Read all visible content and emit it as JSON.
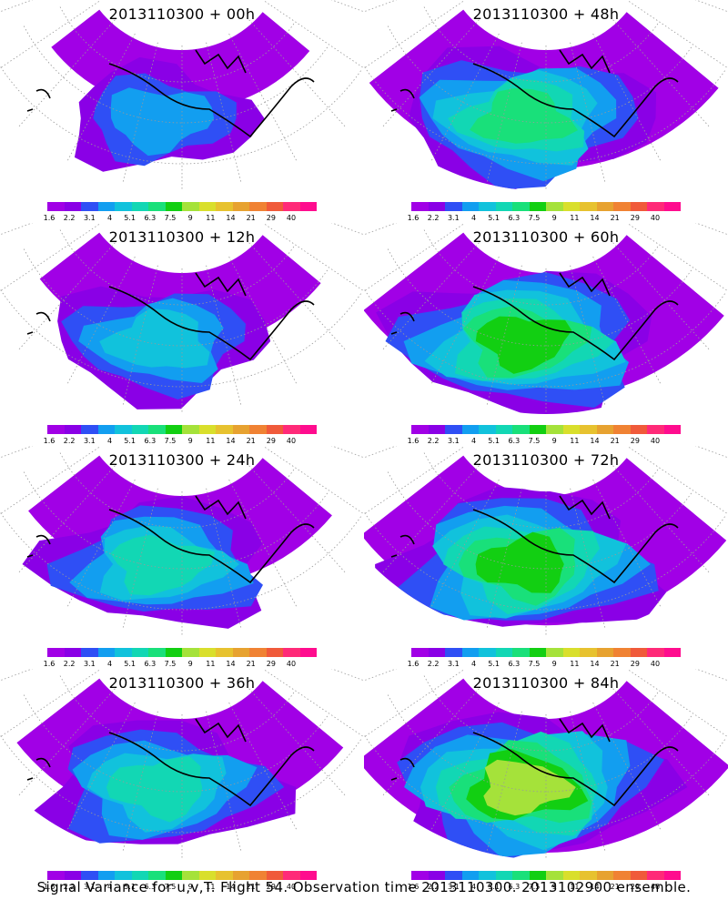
{
  "panels": [
    {
      "title": "2013110300 + 00h",
      "intensity": 0.1,
      "coverage": 0.35
    },
    {
      "title": "2013110300 + 48h",
      "intensity": 0.4,
      "coverage": 0.85
    },
    {
      "title": "2013110300 + 12h",
      "intensity": 0.2,
      "coverage": 0.55
    },
    {
      "title": "2013110300 + 60h",
      "intensity": 0.5,
      "coverage": 0.9
    },
    {
      "title": "2013110300 + 24h",
      "intensity": 0.3,
      "coverage": 0.65
    },
    {
      "title": "2013110300 + 72h",
      "intensity": 0.6,
      "coverage": 0.92
    },
    {
      "title": "2013110300 + 36h",
      "intensity": 0.35,
      "coverage": 0.75
    },
    {
      "title": "2013110300 + 84h",
      "intensity": 0.7,
      "coverage": 0.95
    }
  ],
  "colorbar": {
    "colors": [
      "#a100e6",
      "#8a00e6",
      "#2f4ff5",
      "#129ef0",
      "#11c2dc",
      "#12d7b4",
      "#19e07a",
      "#12cf12",
      "#a5e23a",
      "#d9df2c",
      "#e7c22f",
      "#e7a230",
      "#f08233",
      "#f05a3a",
      "#ff2a78",
      "#ff0c8e"
    ],
    "labels": [
      "1.6",
      "2.2",
      "3.1",
      "4",
      "5.1",
      "6.3",
      "7.5",
      "9",
      "11",
      "14",
      "21",
      "29",
      "40"
    ]
  },
  "caption": "Signal Variance for u,v,T. Flight 54. Observation time 2013110300. 2013102900 ensemble."
}
